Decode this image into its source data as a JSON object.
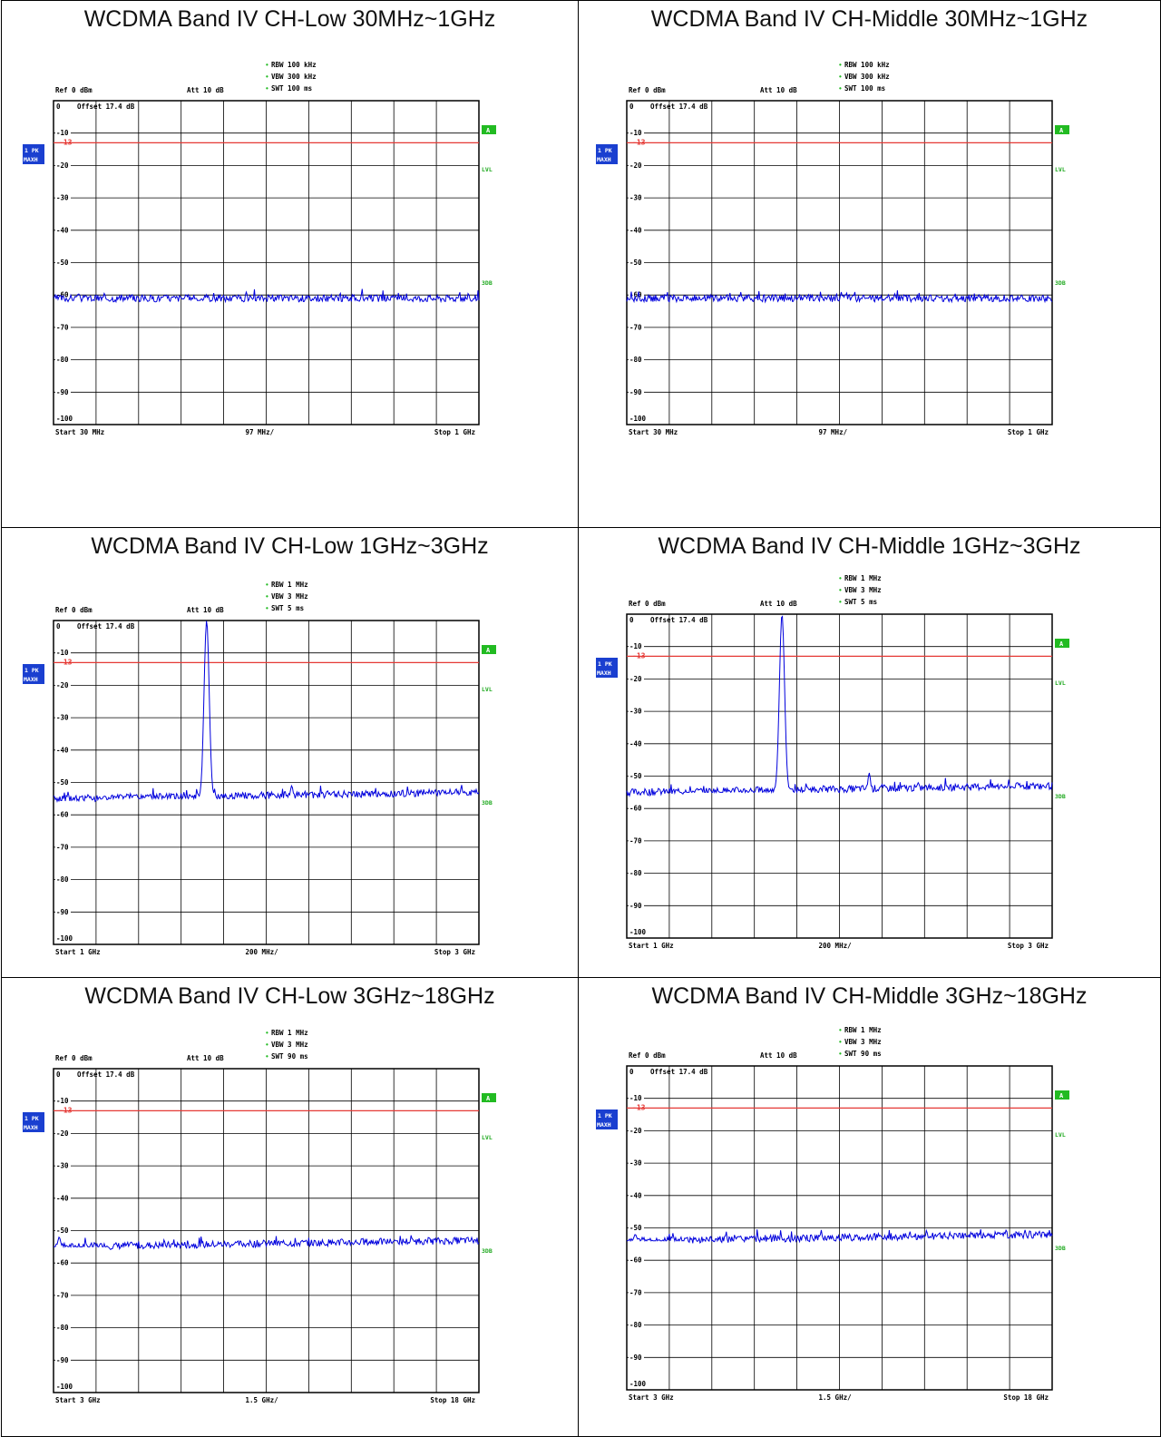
{
  "colors": {
    "trace": "#0000dd",
    "limit_line": "#e53935",
    "grid": "#000000",
    "badge_green": "#22bb22",
    "side_text_green": "#22aa22",
    "trace_label_bg": "#1a3fd0"
  },
  "common": {
    "ref_label": "Ref  0 dBm",
    "att_label": "Att  10 dB",
    "offset_label": "Offset  17.4 dB",
    "trace_badge_line1": "1 PK",
    "trace_badge_line2": "MAXH",
    "a_badge": "A",
    "lvl_label": "LVL",
    "three_db_label": "3DB",
    "limit_label": "-13",
    "y_ticks": [
      "0",
      "-10",
      "-20",
      "-30",
      "-40",
      "-50",
      "-60",
      "-70",
      "-80",
      "-90",
      "-100"
    ]
  },
  "panels": [
    {
      "title": "WCDMA Band IV CH-Low 30MHz~1GHz",
      "rbw": "RBW  100 kHz",
      "vbw": "VBW  300 kHz",
      "swt": "SWT  100 ms",
      "start": "Start  30 MHz",
      "div": "97 MHz/",
      "stop": "Stop  1 GHz"
    },
    {
      "title": "WCDMA Band IV CH-Middle 30MHz~1GHz",
      "rbw": "RBW  100 kHz",
      "vbw": "VBW  300 kHz",
      "swt": "SWT  100 ms",
      "start": "Start  30 MHz",
      "div": "97 MHz/",
      "stop": "Stop  1 GHz"
    },
    {
      "title": "WCDMA Band IV CH-Low 1GHz~3GHz",
      "rbw": "RBW  1 MHz",
      "vbw": "VBW  3 MHz",
      "swt": "SWT  5 ms",
      "start": "Start  1 GHz",
      "div": "200 MHz/",
      "stop": "Stop  3 GHz"
    },
    {
      "title": "WCDMA Band IV CH-Middle 1GHz~3GHz",
      "rbw": "RBW  1 MHz",
      "vbw": "VBW  3 MHz",
      "swt": "SWT  5 ms",
      "start": "Start  1 GHz",
      "div": "200 MHz/",
      "stop": "Stop  3 GHz"
    },
    {
      "title": "WCDMA Band IV CH-Low 3GHz~18GHz",
      "rbw": "RBW  1 MHz",
      "vbw": "VBW  3 MHz",
      "swt": "SWT  90 ms",
      "start": "Start  3 GHz",
      "div": "1.5 GHz/",
      "stop": "Stop  18 GHz"
    },
    {
      "title": "WCDMA Band IV CH-Middle 3GHz~18GHz",
      "rbw": "RBW  1 MHz",
      "vbw": "VBW  3 MHz",
      "swt": "SWT  90 ms",
      "start": "Start  3 GHz",
      "div": "1.5 GHz/",
      "stop": "Stop  18 GHz"
    }
  ],
  "chart_data": [
    {
      "type": "line",
      "title": "WCDMA Band IV CH-Low 30MHz~1GHz",
      "xlim": [
        30,
        1000
      ],
      "x_unit": "MHz",
      "ylim": [
        -100,
        0
      ],
      "y_unit": "dBm",
      "limit_line": -13,
      "grid": true,
      "noise_floor": -61,
      "peaks": []
    },
    {
      "type": "line",
      "title": "WCDMA Band IV CH-Middle 30MHz~1GHz",
      "xlim": [
        30,
        1000
      ],
      "x_unit": "MHz",
      "ylim": [
        -100,
        0
      ],
      "y_unit": "dBm",
      "limit_line": -13,
      "grid": true,
      "noise_floor": -61,
      "peaks": []
    },
    {
      "type": "line",
      "title": "WCDMA Band IV CH-Low 1GHz~3GHz",
      "xlim": [
        1000,
        3000
      ],
      "x_unit": "MHz",
      "ylim": [
        -100,
        0
      ],
      "y_unit": "dBm",
      "limit_line": -13,
      "grid": true,
      "noise_floor": -55,
      "peaks": [
        {
          "x": 1720,
          "y": 0
        },
        {
          "x": 2120,
          "y": -51
        }
      ]
    },
    {
      "type": "line",
      "title": "WCDMA Band IV CH-Middle 1GHz~3GHz",
      "xlim": [
        1000,
        3000
      ],
      "x_unit": "MHz",
      "ylim": [
        -100,
        0
      ],
      "y_unit": "dBm",
      "limit_line": -13,
      "grid": true,
      "noise_floor": -55,
      "peaks": [
        {
          "x": 1730,
          "y": 0
        },
        {
          "x": 2140,
          "y": -49
        }
      ]
    },
    {
      "type": "line",
      "title": "WCDMA Band IV CH-Low 3GHz~18GHz",
      "xlim": [
        3,
        18
      ],
      "x_unit": "GHz",
      "ylim": [
        -100,
        0
      ],
      "y_unit": "dBm",
      "limit_line": -13,
      "grid": true,
      "noise_floor": -55,
      "peaks": [
        {
          "x": 3.2,
          "y": -52
        }
      ]
    },
    {
      "type": "line",
      "title": "WCDMA Band IV CH-Middle 3GHz~18GHz",
      "xlim": [
        3,
        18
      ],
      "x_unit": "GHz",
      "ylim": [
        -100,
        0
      ],
      "y_unit": "dBm",
      "limit_line": -13,
      "grid": true,
      "noise_floor": -54,
      "peaks": [
        {
          "x": 3.3,
          "y": -52
        }
      ]
    }
  ]
}
